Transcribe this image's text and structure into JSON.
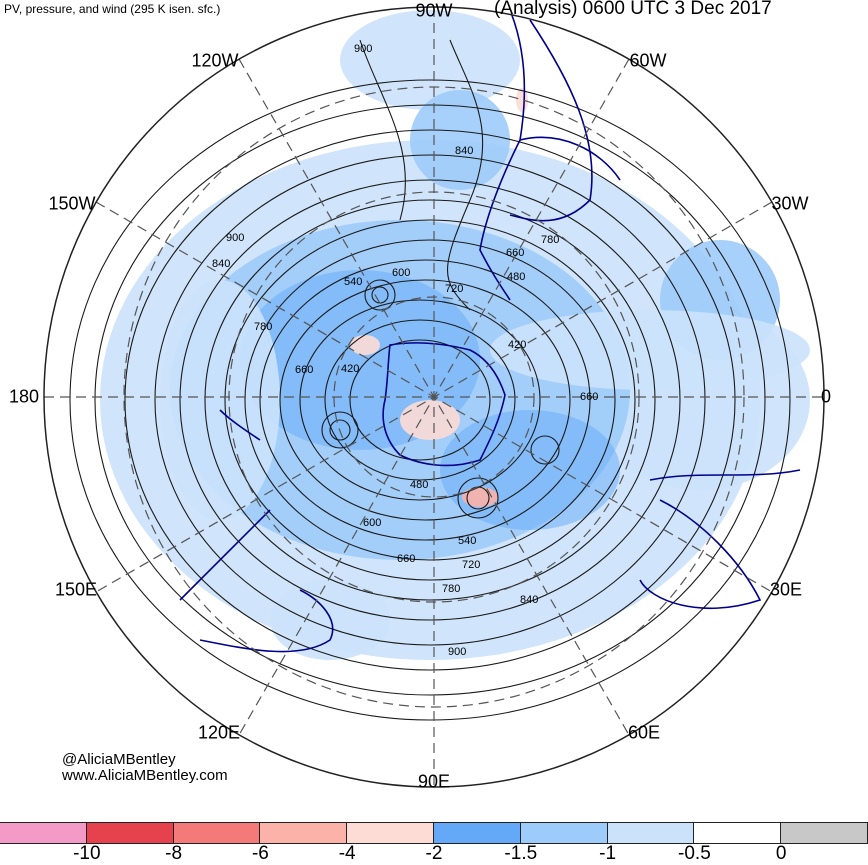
{
  "header": {
    "title_left": "PV, pressure, and wind (295 K isen. sfc.)",
    "title_right": "(Analysis) 0600 UTC 3 Dec 2017"
  },
  "credits": {
    "handle": "@AliciaMBentley",
    "website": "www.AliciaMBentley.com"
  },
  "longitude_labels": {
    "top": "90W",
    "upper_left": "120W",
    "upper_right": "60W",
    "left_upper": "150W",
    "right_upper": "30W",
    "left": "180",
    "right": "0",
    "left_lower": "150E",
    "right_lower": "30E",
    "lower_left": "120E",
    "lower_right": "60E",
    "bottom": "90E"
  },
  "contour_labels": [
    "900",
    "840",
    "720",
    "600",
    "540",
    "660",
    "480",
    "780",
    "900",
    "660",
    "420",
    "780",
    "840",
    "660",
    "420",
    "480",
    "600",
    "540",
    "720",
    "780",
    "840",
    "900",
    "660"
  ],
  "colorbar": {
    "colors": [
      "#f49ac6",
      "#e5424d",
      "#f47a7a",
      "#fbb3a9",
      "#fcdcd4",
      "#63a9f7",
      "#9dcbfa",
      "#cbe2fb",
      "#ffffff",
      "#c8c8c8"
    ],
    "ticks": [
      "-10",
      "-8",
      "-6",
      "-4",
      "-2",
      "-1.5",
      "-1",
      "-0.5",
      "0"
    ]
  },
  "colors": {
    "contour": "#1a1a1a",
    "coastline": "#00008b",
    "pv_light": "#cbe2fb",
    "pv_medium": "#9dcbfa",
    "pv_dark": "#63a9f7",
    "pv_pink": "#fcdcd4"
  }
}
